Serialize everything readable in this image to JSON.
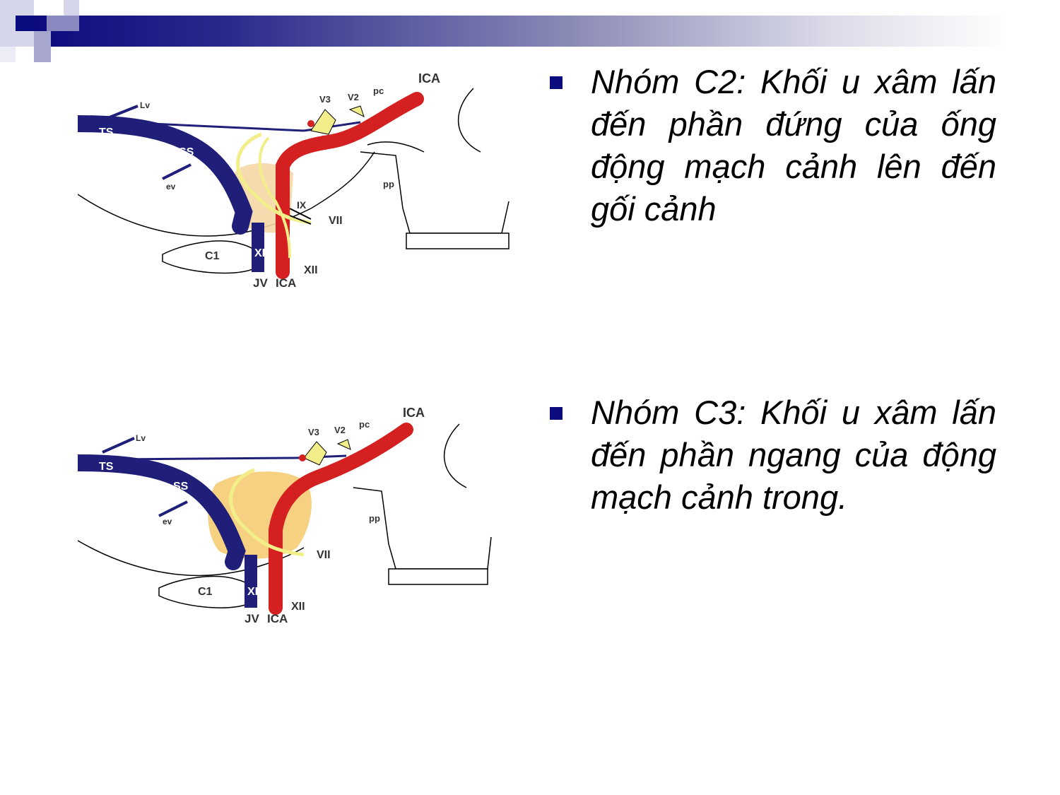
{
  "slide": {
    "bullets": [
      {
        "text": "Nhóm C2: Khối u xâm lấn đến phần đứng của ống động mạch cảnh lên đến gối cảnh"
      },
      {
        "text": "Nhóm C3: Khối u xâm lấn đến phần ngang của động mạch cảnh trong."
      }
    ]
  },
  "diagram_top": {
    "labels": {
      "ica_top": "ICA",
      "lv": "Lv",
      "ts": "TS",
      "ss": "SS",
      "ev": "ev",
      "v3": "V3",
      "v2": "V2",
      "pc": "pc",
      "pp": "pp",
      "ix": "IX",
      "vii": "VII",
      "c1": "C1",
      "xi": "XI",
      "xii": "XII",
      "jv": "JV",
      "ica_bottom": "ICA"
    }
  },
  "diagram_bottom": {
    "labels": {
      "ica_top": "ICA",
      "lv": "Lv",
      "ts": "TS",
      "ss": "SS",
      "ev": "ev",
      "v3": "V3",
      "v2": "V2",
      "pc": "pc",
      "pp": "pp",
      "vii": "VII",
      "c1": "C1",
      "xi": "XI",
      "xii": "XII",
      "jv": "JV",
      "ica_bottom": "ICA"
    }
  },
  "colors": {
    "accent": "#0b0b80",
    "vein": "#1f1f7a",
    "artery": "#d42020",
    "tumor": "#f3c96b",
    "nerve": "#f2ef8a"
  }
}
